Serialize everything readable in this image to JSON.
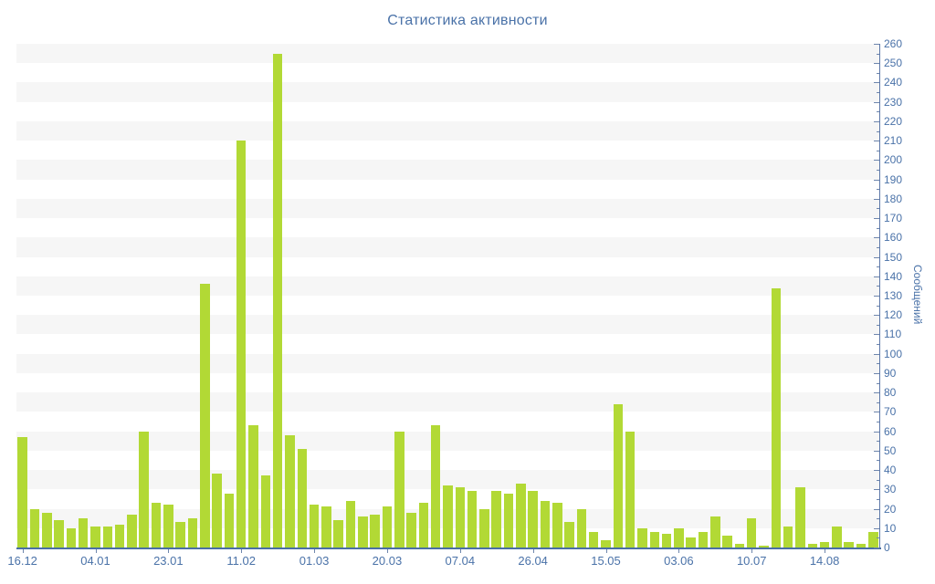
{
  "chart_data": {
    "type": "bar",
    "title": "Статистика активности",
    "ylabel": "Сообщений",
    "xlabel": "",
    "ylim": [
      0,
      260
    ],
    "y_tick_step": 10,
    "y_minor_tick_step": 5,
    "grid": "alternating-horizontal-bands",
    "legend": "none",
    "values": [
      57,
      20,
      18,
      14,
      10,
      15,
      11,
      11,
      12,
      17,
      60,
      23,
      22,
      13,
      15,
      136,
      38,
      28,
      210,
      63,
      37,
      255,
      58,
      51,
      22,
      21,
      14,
      24,
      16,
      17,
      21,
      60,
      18,
      23,
      63,
      32,
      31,
      29,
      20,
      29,
      28,
      33,
      29,
      24,
      23,
      13,
      20,
      8,
      4,
      74,
      60,
      10,
      8,
      7,
      10,
      5,
      8,
      16,
      6,
      2,
      15,
      1,
      134,
      11,
      31,
      2,
      3,
      11,
      3,
      2,
      8
    ],
    "x_tick_labels": [
      {
        "index": 0,
        "label": "16.12"
      },
      {
        "index": 6,
        "label": "04.01"
      },
      {
        "index": 12,
        "label": "23.01"
      },
      {
        "index": 18,
        "label": "11.02"
      },
      {
        "index": 24,
        "label": "01.03"
      },
      {
        "index": 30,
        "label": "20.03"
      },
      {
        "index": 36,
        "label": "07.04"
      },
      {
        "index": 42,
        "label": "26.04"
      },
      {
        "index": 48,
        "label": "15.05"
      },
      {
        "index": 54,
        "label": "03.06"
      },
      {
        "index": 60,
        "label": "10.07"
      },
      {
        "index": 66,
        "label": "14.08"
      }
    ],
    "colors": {
      "background": "#ffffff",
      "bar": "#b2d935",
      "stripe": "#f6f6f6",
      "title_text": "#4a72a8",
      "axis_text": "#4a72a8",
      "y_axis_line": "#5b77a8",
      "x_axis_line": "#4a6fa5",
      "tick_mark": "#6e86ad"
    }
  }
}
